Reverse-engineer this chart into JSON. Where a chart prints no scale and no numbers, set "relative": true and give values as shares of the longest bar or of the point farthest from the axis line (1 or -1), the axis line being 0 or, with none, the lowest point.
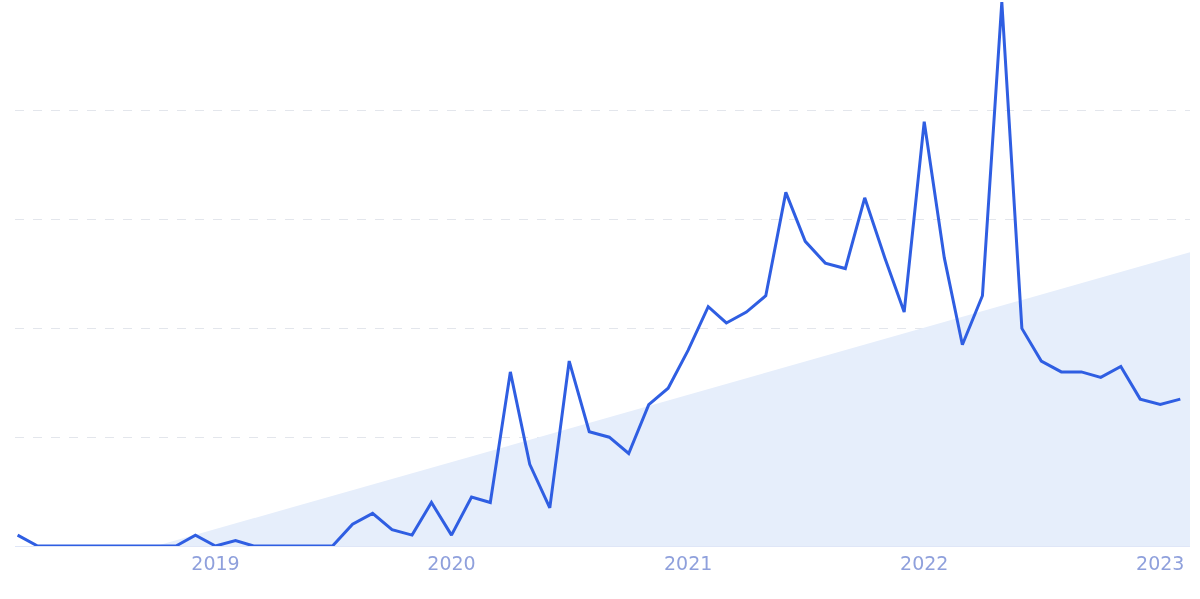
{
  "chart_data": {
    "type": "line",
    "relative": true,
    "grid": "y",
    "line_style": "solid",
    "marker": "none",
    "x": [
      "2018-03",
      "2018-04",
      "2018-05",
      "2018-06",
      "2018-07",
      "2018-08",
      "2018-09",
      "2018-10",
      "2018-11",
      "2018-12",
      "2019-01",
      "2019-02",
      "2019-03",
      "2019-04",
      "2019-05",
      "2019-06",
      "2019-07",
      "2019-08",
      "2019-09",
      "2019-10",
      "2019-11",
      "2019-12",
      "2020-01",
      "2020-02",
      "2020-03",
      "2020-04",
      "2020-05",
      "2020-06",
      "2020-07",
      "2020-08",
      "2020-09",
      "2020-10",
      "2020-11",
      "2020-12",
      "2021-01",
      "2021-02",
      "2021-03",
      "2021-04",
      "2021-05",
      "2021-06",
      "2021-07",
      "2021-08",
      "2021-09",
      "2021-10",
      "2021-11",
      "2021-12",
      "2022-01",
      "2022-02",
      "2022-03",
      "2022-04",
      "2022-05",
      "2022-06",
      "2022-07",
      "2022-08",
      "2022-09",
      "2022-10",
      "2022-11",
      "2022-12",
      "2023-01",
      "2023-02"
    ],
    "xlim": [
      "2018-02-25",
      "2023-02-16"
    ],
    "xticks": [
      "2019",
      "2020",
      "2021",
      "2022",
      "2023"
    ],
    "series": [
      {
        "type": "area",
        "color": "#e6eefb",
        "x": [
          "2018-10",
          "2023-02-16"
        ],
        "values": [
          0,
          0.54
        ]
      },
      {
        "color": "#2f5ee2",
        "values": [
          0.02,
          0,
          0,
          0,
          0,
          0,
          0,
          0,
          0,
          0.02,
          0,
          0.01,
          0,
          0,
          0,
          0,
          0,
          0.04,
          0.06,
          0.03,
          0.02,
          0.08,
          0.02,
          0.09,
          0.08,
          0.32,
          0.15,
          0.07,
          0.34,
          0.21,
          0.2,
          0.17,
          0.26,
          0.29,
          0.36,
          0.44,
          0.41,
          0.43,
          0.46,
          0.65,
          0.56,
          0.52,
          0.51,
          0.64,
          0.53,
          0.43,
          0.78,
          0.53,
          0.37,
          0.46,
          1,
          0.4,
          0.34,
          0.32,
          0.32,
          0.31,
          0.33,
          0.27,
          0.26,
          0.27
        ]
      }
    ]
  }
}
